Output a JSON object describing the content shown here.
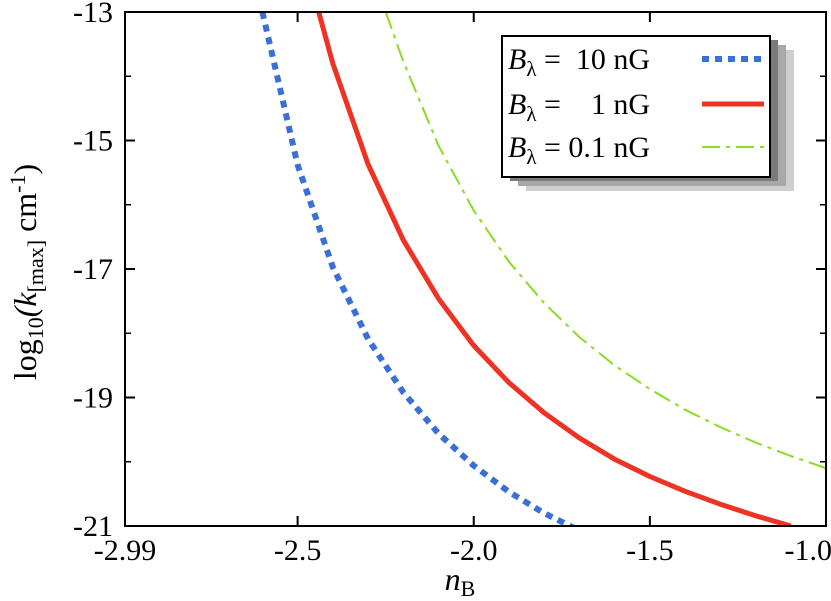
{
  "chart_data": {
    "type": "line",
    "xlabel": {
      "base": "n",
      "sub": "B"
    },
    "ylabel": {
      "pre": "log",
      "pre_sub": "10",
      "mid": "(k",
      "mid_sub": "[max]",
      "post": " cm",
      "post_sup": "-1",
      "close": ")"
    },
    "xlim": [
      -2.99,
      -1.0
    ],
    "ylim": [
      -21,
      -13
    ],
    "xticks": [
      -2.99,
      -2.5,
      -2.0,
      -1.5,
      -1.0
    ],
    "xtick_labels": [
      "-2.99",
      "-2.5",
      "-2.0",
      "-1.5",
      "-1.0"
    ],
    "yticks": [
      -13,
      -15,
      -17,
      -19,
      -21
    ],
    "ytick_labels": [
      "-13",
      "-15",
      "-17",
      "-19",
      "-21"
    ],
    "legend_position": "top-right",
    "series": [
      {
        "name": "10 nG",
        "legend_label": {
          "sym": "B",
          "sub": "λ",
          "eq": " =  10 nG"
        },
        "color": "#3a6fd8",
        "style": "dotted",
        "x": [
          -2.6,
          -2.5,
          -2.4,
          -2.3,
          -2.2,
          -2.1,
          -2.0,
          -1.9,
          -1.8,
          -1.7
        ],
        "y": [
          -13.0,
          -15.38,
          -16.97,
          -18.09,
          -18.92,
          -19.56,
          -20.06,
          -20.47,
          -20.8,
          -21.07
        ]
      },
      {
        "name": "1 nG",
        "legend_label": {
          "sym": "B",
          "sub": "λ",
          "eq": " =    1 nG"
        },
        "color": "#ee3324",
        "style": "solid",
        "x": [
          -2.44,
          -2.4,
          -2.3,
          -2.2,
          -2.1,
          -2.0,
          -1.9,
          -1.8,
          -1.7,
          -1.6,
          -1.5,
          -1.4,
          -1.3,
          -1.2,
          -1.1
        ],
        "y": [
          -13.0,
          -13.8,
          -15.37,
          -16.55,
          -17.46,
          -18.19,
          -18.77,
          -19.24,
          -19.63,
          -19.96,
          -20.23,
          -20.46,
          -20.66,
          -20.84,
          -21.0
        ]
      },
      {
        "name": "0.1 nG",
        "legend_label": {
          "sym": "B",
          "sub": "λ",
          "eq": " = 0.1 nG"
        },
        "color": "#88dd22",
        "style": "dashdot",
        "x": [
          -2.25,
          -2.2,
          -2.1,
          -2.0,
          -1.9,
          -1.8,
          -1.7,
          -1.6,
          -1.5,
          -1.4,
          -1.3,
          -1.2,
          -1.1,
          -1.0
        ],
        "y": [
          -13.0,
          -13.77,
          -15.08,
          -16.09,
          -16.89,
          -17.53,
          -18.06,
          -18.5,
          -18.87,
          -19.19,
          -19.46,
          -19.7,
          -19.91,
          -20.1
        ]
      }
    ]
  }
}
